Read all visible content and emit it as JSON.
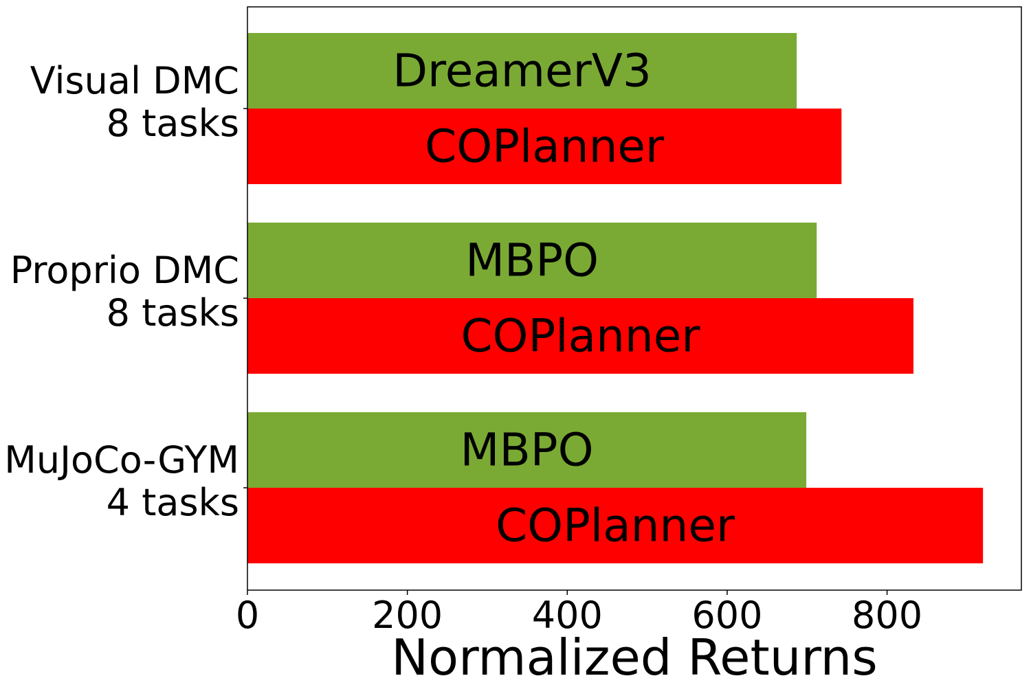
{
  "chart_data": {
    "type": "bar",
    "orientation": "horizontal",
    "categories": [
      {
        "lines": [
          "Visual DMC",
          "8 tasks"
        ]
      },
      {
        "lines": [
          "Proprio DMC",
          "8 tasks"
        ]
      },
      {
        "lines": [
          "MuJoCo-GYM",
          "4 tasks"
        ]
      }
    ],
    "bars": [
      {
        "baseline": "DreamerV3",
        "baseline_value": 687,
        "ours": "COPlanner",
        "ours_value": 743
      },
      {
        "baseline": "MBPO",
        "baseline_value": 712,
        "ours": "COPlanner",
        "ours_value": 833
      },
      {
        "baseline": "MBPO",
        "baseline_value": 699,
        "ours": "COPlanner",
        "ours_value": 920
      }
    ],
    "xlabel": "Normalized Returns",
    "xlim": [
      0,
      968
    ],
    "xticks": [
      0,
      200,
      400,
      600,
      800
    ],
    "grid": false,
    "legend": "none",
    "colors": {
      "baseline": "#7aaa34",
      "ours": "#ff0000"
    }
  }
}
